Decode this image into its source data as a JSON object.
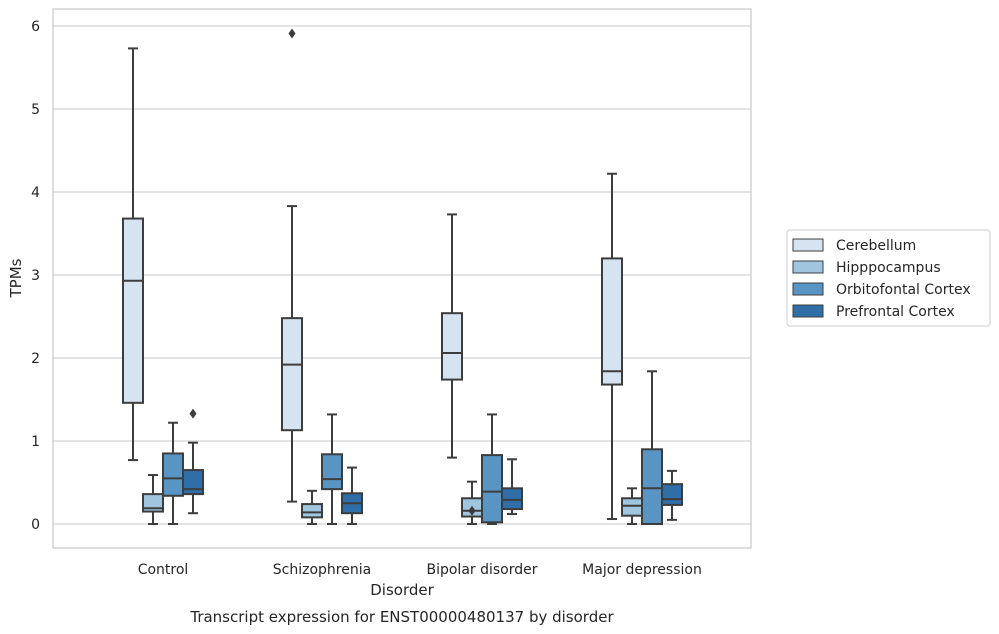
{
  "chart_data": {
    "type": "box",
    "xlabel": "Disorder",
    "ylabel": "TPMs",
    "caption": "Transcript expression for ENST00000480137 by disorder",
    "ylim": [
      -0.28,
      6.2
    ],
    "yticks": [
      "0",
      "1",
      "2",
      "3",
      "4",
      "5",
      "6"
    ],
    "grid": "horizontal",
    "legend_position": "right",
    "categories": [
      "Control",
      "Schizophrenia",
      "Bipolar disorder",
      "Major depression"
    ],
    "series": [
      {
        "name": "Cerebellum",
        "color": "#d6e4f2",
        "boxes": [
          {
            "whisker_low": 0.77,
            "q1": 1.46,
            "median": 2.93,
            "q3": 3.68,
            "whisker_high": 5.73,
            "outliers": []
          },
          {
            "whisker_low": 0.27,
            "q1": 1.13,
            "median": 1.92,
            "q3": 2.48,
            "whisker_high": 3.83,
            "outliers": [
              5.91
            ]
          },
          {
            "whisker_low": 0.8,
            "q1": 1.74,
            "median": 2.06,
            "q3": 2.54,
            "whisker_high": 3.73,
            "outliers": []
          },
          {
            "whisker_low": 0.06,
            "q1": 1.68,
            "median": 1.84,
            "q3": 3.2,
            "whisker_high": 4.22,
            "outliers": []
          }
        ]
      },
      {
        "name": "Hipppocampus",
        "color": "#9fc5df",
        "boxes": [
          {
            "whisker_low": 0.0,
            "q1": 0.15,
            "median": 0.19,
            "q3": 0.36,
            "whisker_high": 0.59,
            "outliers": []
          },
          {
            "whisker_low": 0.0,
            "q1": 0.08,
            "median": 0.14,
            "q3": 0.24,
            "whisker_high": 0.4,
            "outliers": []
          },
          {
            "whisker_low": 0.0,
            "q1": 0.09,
            "median": 0.16,
            "q3": 0.31,
            "whisker_high": 0.51,
            "outliers": [
              0.16
            ]
          },
          {
            "whisker_low": 0.0,
            "q1": 0.1,
            "median": 0.22,
            "q3": 0.31,
            "whisker_high": 0.43,
            "outliers": []
          }
        ]
      },
      {
        "name": "Orbitofontal Cortex",
        "color": "#5895c5",
        "boxes": [
          {
            "whisker_low": 0.0,
            "q1": 0.34,
            "median": 0.55,
            "q3": 0.85,
            "whisker_high": 1.22,
            "outliers": []
          },
          {
            "whisker_low": 0.0,
            "q1": 0.42,
            "median": 0.54,
            "q3": 0.84,
            "whisker_high": 1.32,
            "outliers": []
          },
          {
            "whisker_low": 0.0,
            "q1": 0.02,
            "median": 0.39,
            "q3": 0.83,
            "whisker_high": 1.32,
            "outliers": []
          },
          {
            "whisker_low": 0.0,
            "q1": 0.0,
            "median": 0.43,
            "q3": 0.9,
            "whisker_high": 1.84,
            "outliers": []
          }
        ]
      },
      {
        "name": "Prefrontal Cortex",
        "color": "#2f6ea7",
        "boxes": [
          {
            "whisker_low": 0.13,
            "q1": 0.36,
            "median": 0.42,
            "q3": 0.65,
            "whisker_high": 0.98,
            "outliers": [
              1.33
            ]
          },
          {
            "whisker_low": 0.0,
            "q1": 0.13,
            "median": 0.25,
            "q3": 0.37,
            "whisker_high": 0.68,
            "outliers": []
          },
          {
            "whisker_low": 0.12,
            "q1": 0.18,
            "median": 0.29,
            "q3": 0.43,
            "whisker_high": 0.78,
            "outliers": []
          },
          {
            "whisker_low": 0.05,
            "q1": 0.23,
            "median": 0.3,
            "q3": 0.48,
            "whisker_high": 0.64,
            "outliers": []
          }
        ]
      }
    ]
  }
}
